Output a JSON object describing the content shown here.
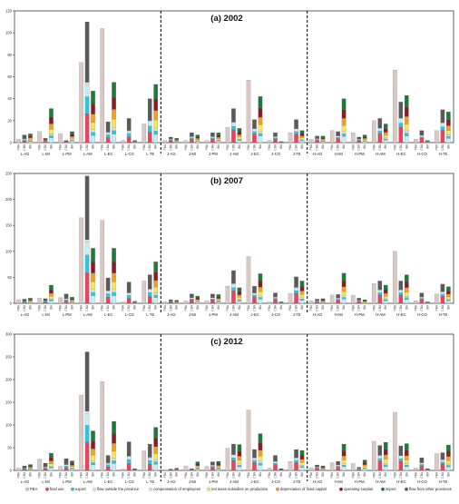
{
  "chart_data": {
    "type": "bar",
    "stacked": true,
    "grid": false,
    "legend_position": "bottom",
    "group_labels": [
      "L-AG",
      "L-MI",
      "L-PM",
      "L-AM",
      "L-EC",
      "L-CO",
      "L-TE",
      "J-AG",
      "J-MI",
      "J-PM",
      "J-AM",
      "J-EC",
      "J-CO",
      "J-TE",
      "H-AG",
      "H-MI",
      "H-PM",
      "H-AM",
      "H-EC",
      "H-CO",
      "H-TE"
    ],
    "bar_labels": [
      "PBA",
      "CBA",
      "IBA"
    ],
    "legend": [
      {
        "key": "pba",
        "label": "PBA",
        "color": "#d9c8c3"
      },
      {
        "key": "final_use",
        "label": "final use",
        "color": "#e8445f"
      },
      {
        "key": "export",
        "label": "export",
        "color": "#2ec4e0"
      },
      {
        "key": "flow_out",
        "label": "flow outside the province",
        "color": "#c8ecf5"
      },
      {
        "key": "comp",
        "label": "compensation of employees",
        "color": "#d8e8d0"
      },
      {
        "key": "taxes",
        "label": "net taxes subsidies on production",
        "color": "#f2e85a"
      },
      {
        "key": "depr",
        "label": "depreciation of fixed capital",
        "color": "#f0a020"
      },
      {
        "key": "surplus",
        "label": "operating surplus",
        "color": "#8b1a2b"
      },
      {
        "key": "import",
        "label": "import",
        "color": "#1f7a3a"
      },
      {
        "key": "flow_in",
        "label": "flow from other provinces",
        "color": "#5a5a5a"
      }
    ],
    "panels": [
      {
        "title": "(a) 2002",
        "ylim": [
          0,
          120
        ],
        "yticks": [
          0,
          20,
          40,
          60,
          80,
          100,
          120
        ],
        "pba": [
          3,
          10,
          8,
          73,
          104,
          2,
          17,
          2,
          2,
          2,
          14,
          57,
          2,
          9,
          3,
          11,
          9,
          20,
          66,
          3,
          11
        ],
        "cba": [
          7,
          4,
          2,
          110,
          19,
          22,
          40,
          5,
          9,
          9,
          31,
          21,
          9,
          21,
          6,
          10,
          5,
          22,
          37,
          11,
          30
        ],
        "iba": [
          8,
          31,
          10,
          47,
          55,
          2,
          53,
          4,
          7,
          9,
          13,
          42,
          1,
          11,
          6,
          40,
          7,
          17,
          43,
          2,
          28
        ]
      },
      {
        "title": "(b) 2007",
        "ylim": [
          0,
          250
        ],
        "yticks": [
          0,
          50,
          100,
          150,
          200,
          250
        ],
        "pba": [
          7,
          10,
          11,
          165,
          160,
          3,
          43,
          3,
          5,
          5,
          33,
          90,
          3,
          19,
          5,
          16,
          15,
          38,
          100,
          5,
          18
        ],
        "cba": [
          8,
          9,
          18,
          245,
          49,
          41,
          55,
          7,
          18,
          18,
          63,
          33,
          20,
          51,
          8,
          17,
          10,
          43,
          43,
          20,
          37
        ],
        "iba": [
          10,
          35,
          12,
          106,
          106,
          4,
          80,
          6,
          14,
          17,
          30,
          57,
          3,
          43,
          9,
          58,
          7,
          35,
          55,
          3,
          32
        ]
      },
      {
        "title": "(c) 2012",
        "ylim": [
          0,
          300
        ],
        "yticks": [
          0,
          50,
          100,
          150,
          200,
          250,
          300
        ],
        "pba": [
          5,
          25,
          9,
          166,
          196,
          3,
          43,
          2,
          10,
          9,
          49,
          133,
          5,
          20,
          6,
          17,
          15,
          64,
          128,
          5,
          37
        ],
        "cba": [
          10,
          16,
          26,
          261,
          33,
          63,
          58,
          3,
          4,
          19,
          58,
          46,
          33,
          46,
          12,
          20,
          7,
          55,
          54,
          28,
          39
        ],
        "iba": [
          13,
          38,
          21,
          87,
          108,
          4,
          95,
          5,
          19,
          20,
          57,
          81,
          4,
          44,
          10,
          58,
          23,
          62,
          59,
          4,
          56
        ]
      }
    ]
  }
}
